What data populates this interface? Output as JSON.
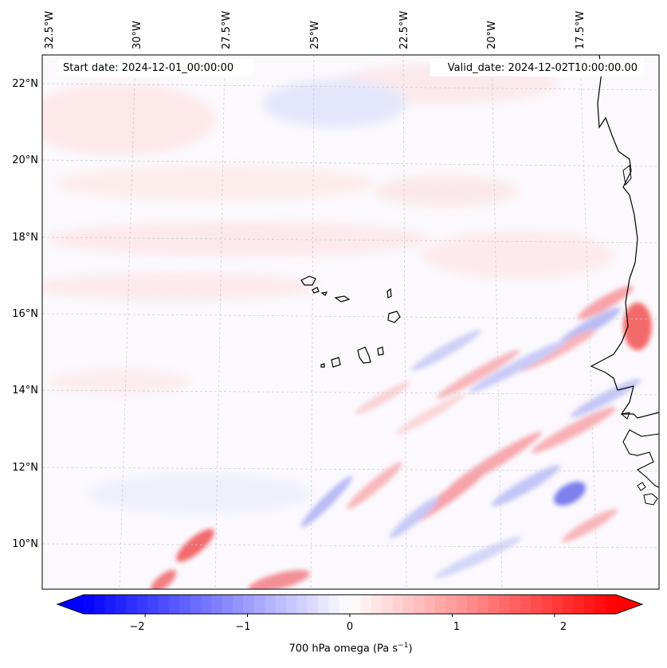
{
  "header": {
    "start_date": "Start date: 2024-12-01_00:00:00",
    "valid_date": "Valid_date: 2024-12-02T10:00:00.00"
  },
  "map": {
    "lon_ticks": [
      "32.5°W",
      "30°W",
      "27.5°W",
      "25°W",
      "22.5°W",
      "20°W",
      "17.5°W"
    ],
    "lat_ticks": [
      "22°N",
      "20°N",
      "18°N",
      "16°N",
      "14°N",
      "12°N",
      "10°N"
    ],
    "extent": {
      "lon_west": -32.7,
      "lon_east": -15.2,
      "lat_south": 8.9,
      "lat_north": 22.8
    },
    "gridlines": true,
    "coastline_color": "#000000"
  },
  "colorbar": {
    "title_prefix": "700 hPa omega (Pa s",
    "title_exp": "−1",
    "title_suffix": ")",
    "tick_labels": [
      "−2",
      "−1",
      "0",
      "1",
      "2"
    ],
    "tick_values": [
      -2,
      -1,
      0,
      1,
      2
    ],
    "range": [
      -2.6,
      2.6
    ],
    "colormap": "bwr",
    "color_low": "#0000ff",
    "color_mid": "#ffffff",
    "color_high": "#ff0000",
    "extend": "both"
  }
}
